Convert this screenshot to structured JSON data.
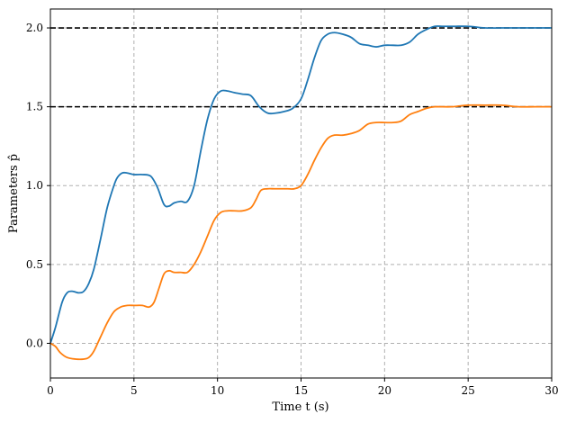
{
  "chart_data": {
    "type": "line",
    "xlabel": "Time t (s)",
    "ylabel": "Parameters p̂",
    "xlim": [
      0,
      30
    ],
    "ylim": [
      -0.22,
      2.12
    ],
    "xticks": [
      0,
      5,
      10,
      15,
      20,
      25,
      30
    ],
    "xtick_labels": [
      "0",
      "5",
      "10",
      "15",
      "20",
      "25",
      "30"
    ],
    "yticks": [
      0.0,
      0.5,
      1.0,
      1.5,
      2.0
    ],
    "ytick_labels": [
      "0.0",
      "0.5",
      "1.0",
      "1.5",
      "2.0"
    ],
    "grid": true,
    "reference_lines": [
      {
        "y": 2.0,
        "style": "dashed",
        "color": "#000000"
      },
      {
        "y": 1.5,
        "style": "dashed",
        "color": "#000000"
      }
    ],
    "series": [
      {
        "color": "#1f77b4",
        "x": [
          0,
          0.3,
          0.7,
          1.0,
          1.3,
          1.7,
          2.0,
          2.3,
          2.6,
          3.0,
          3.4,
          3.8,
          4.0,
          4.3,
          4.6,
          5.0,
          5.5,
          6.0,
          6.4,
          6.8,
          7.1,
          7.4,
          7.8,
          8.2,
          8.6,
          9.0,
          9.4,
          9.8,
          10.2,
          10.6,
          11.0,
          11.5,
          12.0,
          12.5,
          13.0,
          13.5,
          14.0,
          14.5,
          15.0,
          15.4,
          15.8,
          16.2,
          16.6,
          17.0,
          17.5,
          18.0,
          18.5,
          19.0,
          19.5,
          20.0,
          20.5,
          21.0,
          21.5,
          22.0,
          22.5,
          23.0,
          23.5,
          24.0,
          25.0,
          26.0,
          27.0,
          28.0,
          29.0,
          30.0
        ],
        "values": [
          0.0,
          0.1,
          0.26,
          0.32,
          0.33,
          0.32,
          0.33,
          0.38,
          0.47,
          0.66,
          0.86,
          1.0,
          1.05,
          1.08,
          1.08,
          1.07,
          1.07,
          1.06,
          0.99,
          0.88,
          0.87,
          0.89,
          0.9,
          0.9,
          1.0,
          1.22,
          1.42,
          1.55,
          1.6,
          1.6,
          1.59,
          1.58,
          1.57,
          1.5,
          1.46,
          1.46,
          1.47,
          1.49,
          1.55,
          1.67,
          1.81,
          1.92,
          1.96,
          1.97,
          1.96,
          1.94,
          1.9,
          1.89,
          1.88,
          1.89,
          1.89,
          1.89,
          1.91,
          1.96,
          1.99,
          2.01,
          2.01,
          2.01,
          2.01,
          2.0,
          2.0,
          2.0,
          2.0,
          2.0
        ]
      },
      {
        "color": "#ff7f0e",
        "x": [
          0,
          0.3,
          0.6,
          1.0,
          1.5,
          2.0,
          2.3,
          2.6,
          3.0,
          3.4,
          3.8,
          4.2,
          4.6,
          5.0,
          5.5,
          5.9,
          6.2,
          6.5,
          6.8,
          7.1,
          7.4,
          7.8,
          8.2,
          8.6,
          9.0,
          9.4,
          9.8,
          10.2,
          10.6,
          11.0,
          11.5,
          12.0,
          12.3,
          12.6,
          13.0,
          13.4,
          13.8,
          14.2,
          14.6,
          15.0,
          15.4,
          15.8,
          16.2,
          16.6,
          17.0,
          17.5,
          18.0,
          18.5,
          19.0,
          19.5,
          20.0,
          20.5,
          21.0,
          21.5,
          22.0,
          22.5,
          23.0,
          24.0,
          25.0,
          26.0,
          27.0,
          28.0,
          29.0,
          30.0
        ],
        "values": [
          0.0,
          -0.02,
          -0.06,
          -0.09,
          -0.1,
          -0.1,
          -0.09,
          -0.05,
          0.04,
          0.13,
          0.2,
          0.23,
          0.24,
          0.24,
          0.24,
          0.23,
          0.26,
          0.35,
          0.44,
          0.46,
          0.45,
          0.45,
          0.45,
          0.5,
          0.58,
          0.68,
          0.78,
          0.83,
          0.84,
          0.84,
          0.84,
          0.86,
          0.91,
          0.97,
          0.98,
          0.98,
          0.98,
          0.98,
          0.98,
          1.0,
          1.07,
          1.16,
          1.24,
          1.3,
          1.32,
          1.32,
          1.33,
          1.35,
          1.39,
          1.4,
          1.4,
          1.4,
          1.41,
          1.45,
          1.47,
          1.49,
          1.5,
          1.5,
          1.51,
          1.51,
          1.51,
          1.5,
          1.5,
          1.5
        ]
      }
    ]
  }
}
